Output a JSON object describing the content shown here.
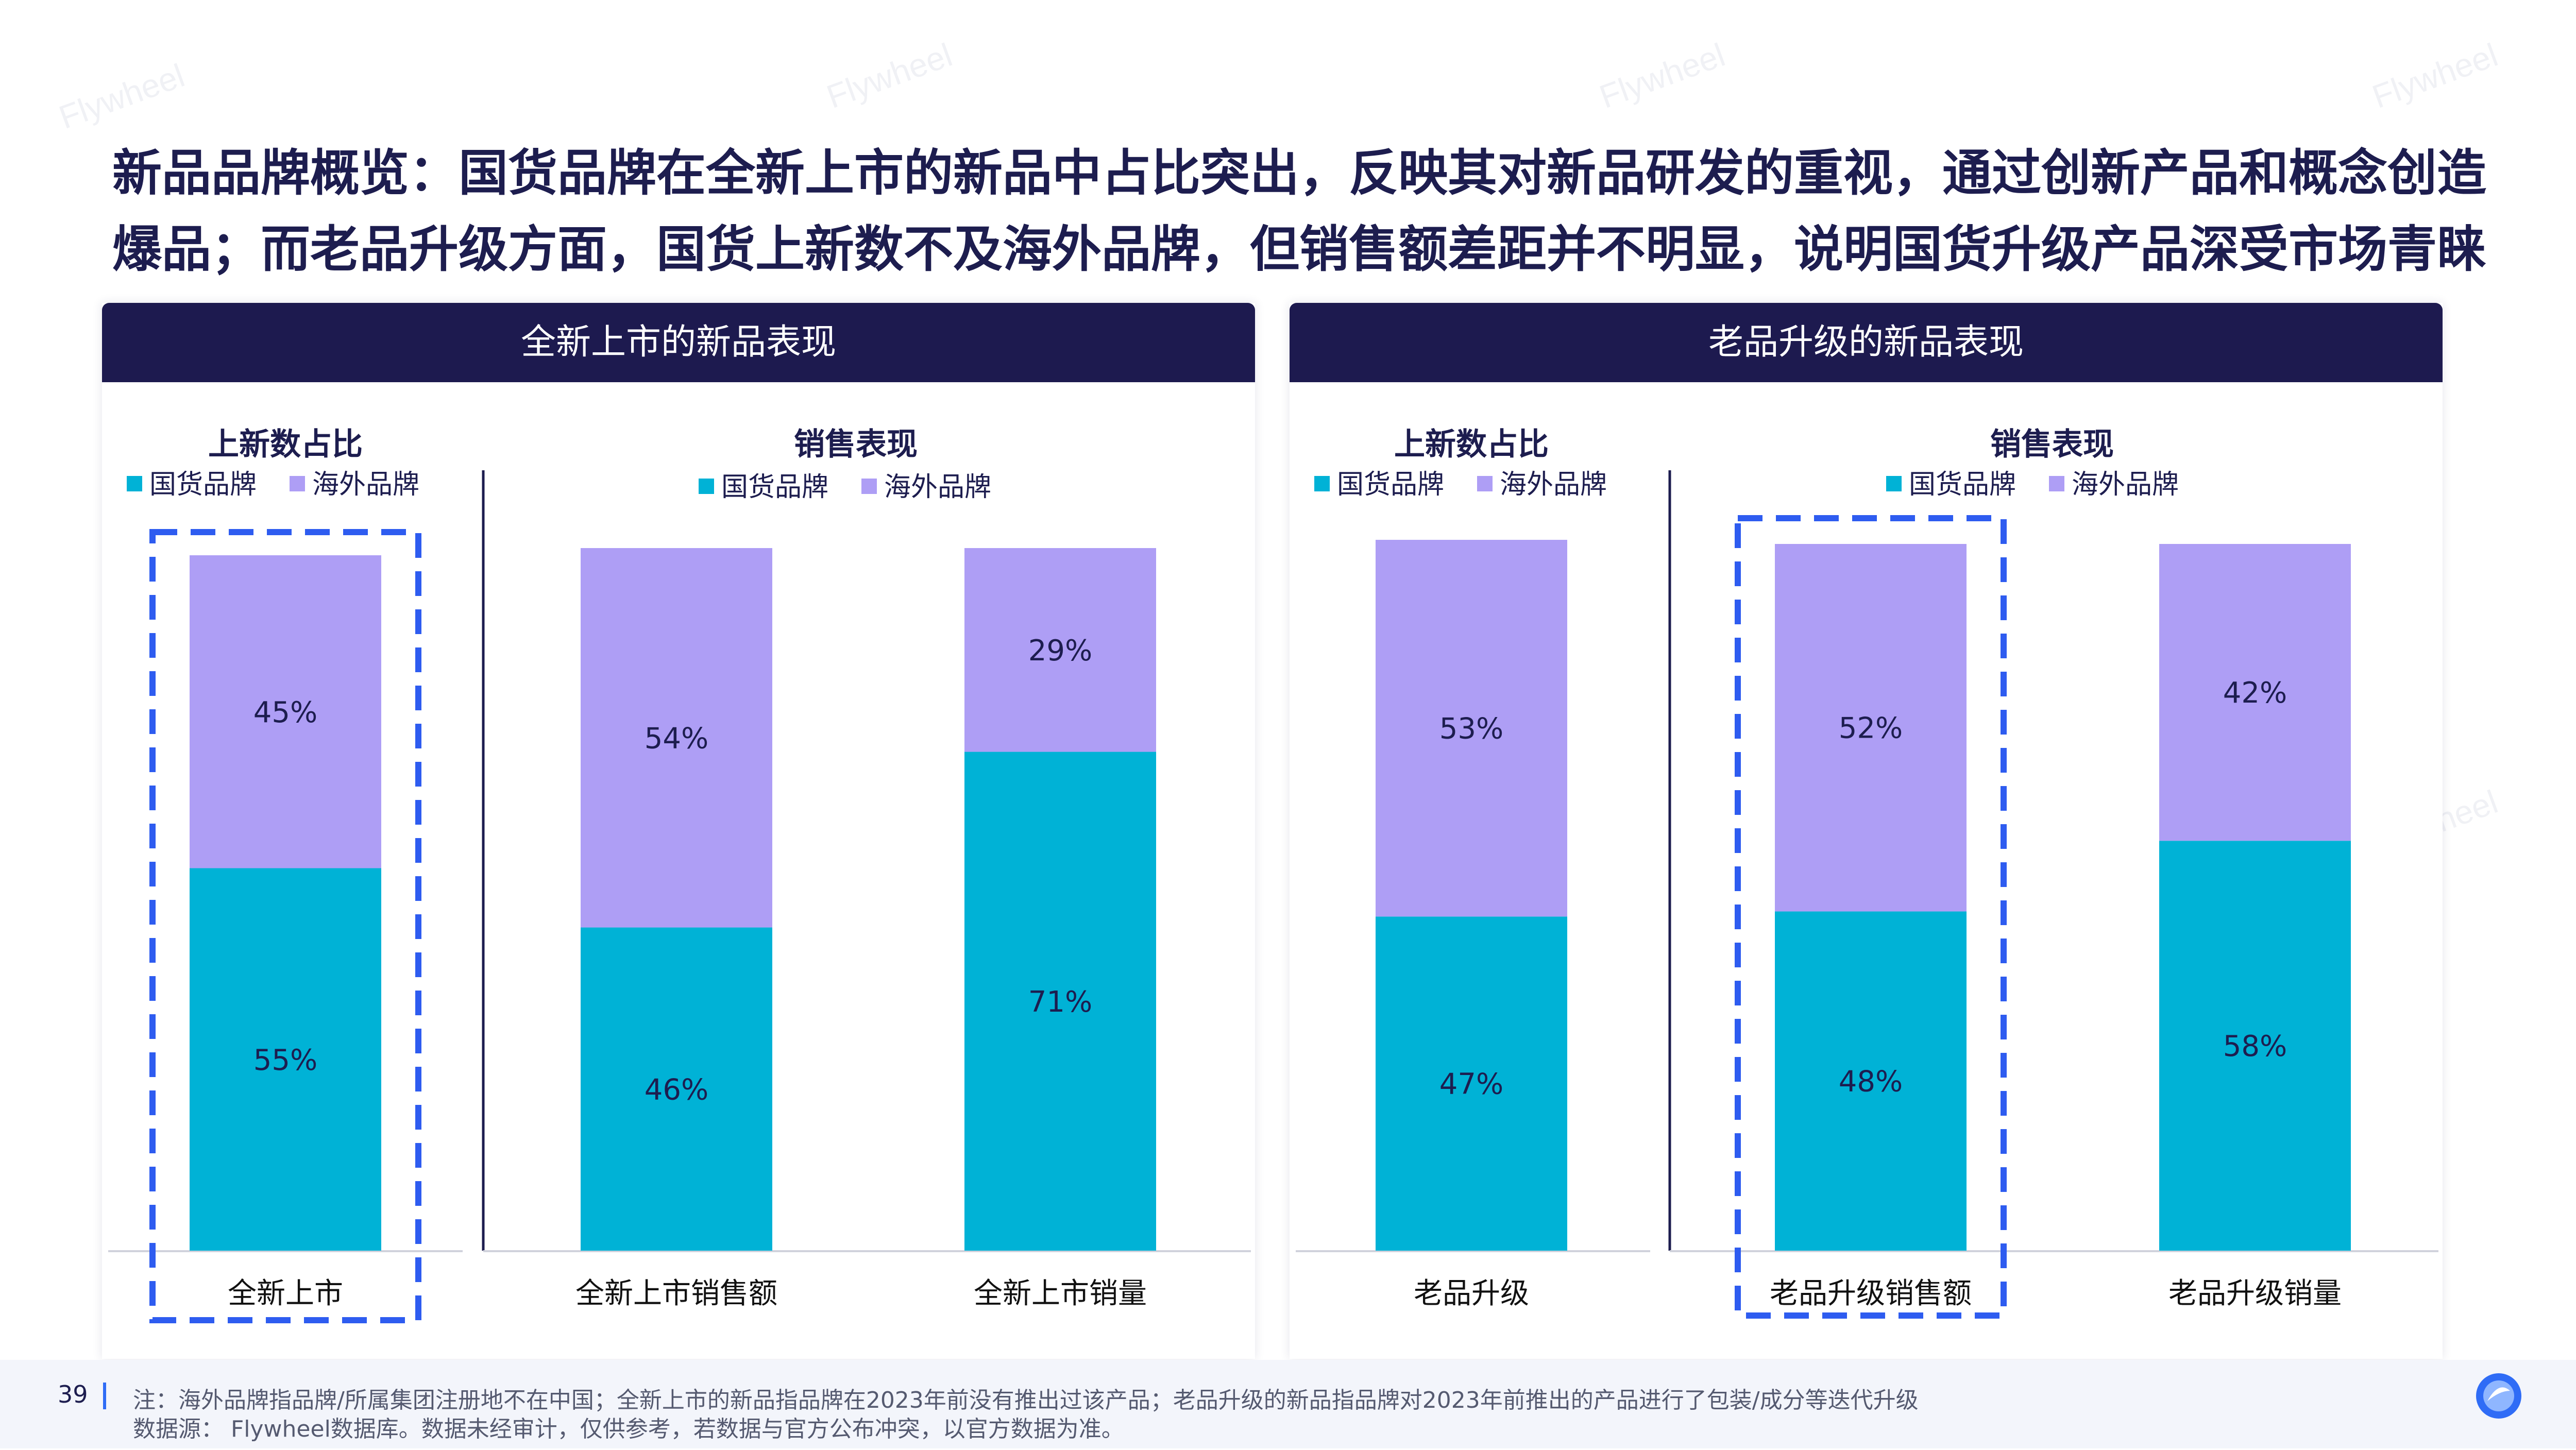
{
  "headline": {
    "line1": "新品品牌概览：国货品牌在全新上市的新品中占比突出，反映其对新品研发的重视，通过创新产品和概念创造",
    "line2": "爆品；而老品升级方面，国货上新数不及海外品牌，但销售额差距并不明显，说明国货升级产品深受市场青睐"
  },
  "watermark": "Flywheel",
  "colors": {
    "domestic": "#00b2d6",
    "overseas": "#ae9ef5",
    "header_bg": "#1d1a4f",
    "highlight": "#2e5cf0",
    "text": "#1d1d4f"
  },
  "panels": [
    {
      "title": "全新上市的新品表现",
      "share_subtitle": "上新数占比",
      "sales_subtitle": "销售表现"
    },
    {
      "title": "老品升级的新品表现",
      "share_subtitle": "上新数占比",
      "sales_subtitle": "销售表现"
    }
  ],
  "chart_data": [
    {
      "type": "bar",
      "stacked": true,
      "title": "上新数占比",
      "legend_position": "top",
      "categories": [
        "全新上市"
      ],
      "series": [
        {
          "name": "国货品牌",
          "values": [
            55
          ]
        },
        {
          "name": "海外品牌",
          "values": [
            45
          ]
        }
      ],
      "ylim": [
        0,
        100
      ],
      "highlighted": [
        "全新上市"
      ]
    },
    {
      "type": "bar",
      "stacked": true,
      "title": "销售表现",
      "legend_position": "top",
      "categories": [
        "全新上市销售额",
        "全新上市销量"
      ],
      "series": [
        {
          "name": "国货品牌",
          "values": [
            46,
            71
          ]
        },
        {
          "name": "海外品牌",
          "values": [
            54,
            29
          ]
        }
      ],
      "ylim": [
        0,
        100
      ]
    },
    {
      "type": "bar",
      "stacked": true,
      "title": "上新数占比",
      "legend_position": "top",
      "categories": [
        "老品升级"
      ],
      "series": [
        {
          "name": "国货品牌",
          "values": [
            47
          ]
        },
        {
          "name": "海外品牌",
          "values": [
            53
          ]
        }
      ],
      "ylim": [
        0,
        100
      ]
    },
    {
      "type": "bar",
      "stacked": true,
      "title": "销售表现",
      "legend_position": "top",
      "categories": [
        "老品升级销售额",
        "老品升级销量"
      ],
      "series": [
        {
          "name": "国货品牌",
          "values": [
            48,
            58
          ]
        },
        {
          "name": "海外品牌",
          "values": [
            52,
            42
          ]
        }
      ],
      "ylim": [
        0,
        100
      ],
      "highlighted": [
        "老品升级销售额"
      ]
    }
  ],
  "footer": {
    "page_number": "39",
    "note": "注：海外品牌指品牌/所属集团注册地不在中国；全新上市的新品指品牌在2023年前没有推出过该产品；老品升级的新品指品牌对2023年前推出的产品进行了包装/成分等迭代升级",
    "source": "数据源： Flywheel数据库。数据未经审计，仅供参考，若数据与官方公布冲突，以官方数据为准。"
  }
}
